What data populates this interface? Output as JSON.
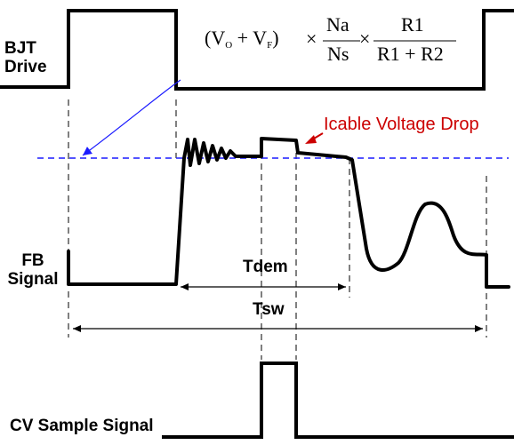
{
  "labels": {
    "bjt_drive": [
      "BJT",
      "Drive"
    ],
    "fb_signal": [
      "FB",
      "Signal"
    ],
    "cv_sample": "CV Sample Signal",
    "tdem": "Tdem",
    "tsw": "Tsw",
    "icable_drop": "Icable Voltage Drop"
  },
  "formula": {
    "open": "(V",
    "sub_o": "O",
    "plus": " + V",
    "sub_f": "F",
    "close": ")",
    "times": "×",
    "na": "Na",
    "ns": "Ns",
    "r1": "R1",
    "r1r2": "R1 + R2"
  },
  "colors": {
    "signal": "#000000",
    "reference_line": "#1a1aff",
    "pointer_arrow": "#1a1aff",
    "annotation_text": "#cc0000"
  }
}
